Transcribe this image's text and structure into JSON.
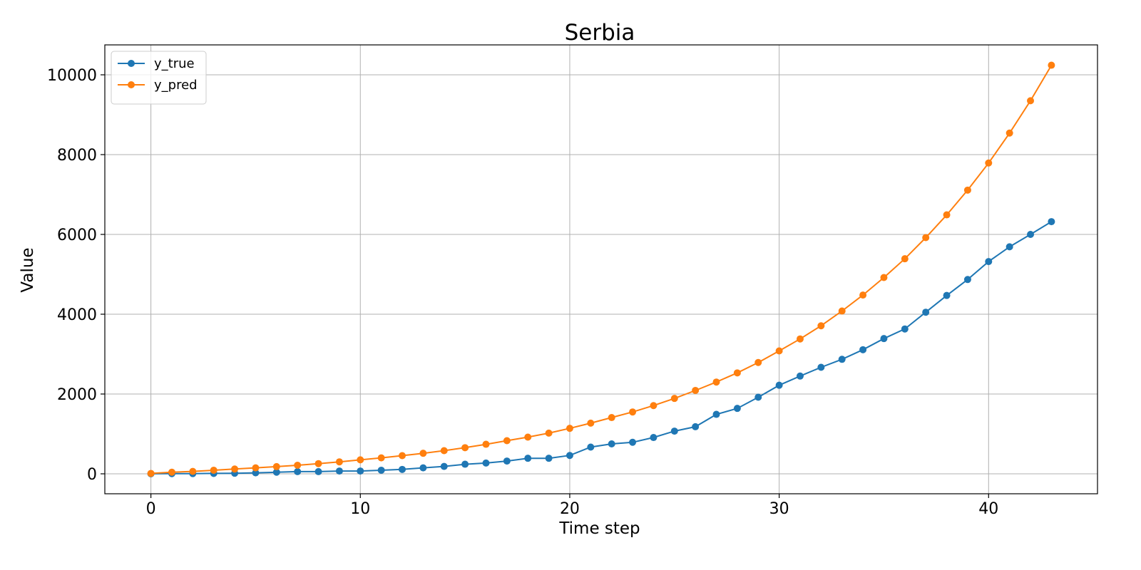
{
  "chart_data": {
    "type": "line",
    "title": "Serbia",
    "xlabel": "Time step",
    "ylabel": "Value",
    "xlim": [
      -2.2,
      45.2
    ],
    "ylim": [
      -500,
      10750
    ],
    "xticks": [
      0,
      10,
      20,
      30,
      40
    ],
    "yticks": [
      0,
      2000,
      4000,
      6000,
      8000,
      10000
    ],
    "grid": true,
    "legend_position": "upper-left",
    "x": [
      0,
      1,
      2,
      3,
      4,
      5,
      6,
      7,
      8,
      9,
      10,
      11,
      12,
      13,
      14,
      15,
      16,
      17,
      18,
      19,
      20,
      21,
      22,
      23,
      24,
      25,
      26,
      27,
      28,
      29,
      30,
      31,
      32,
      33,
      34,
      35,
      36,
      37,
      38,
      39,
      40,
      41,
      42,
      43
    ],
    "series": [
      {
        "name": "y_true",
        "color": "#1f77b4",
        "values": [
          1,
          4,
          6,
          10,
          15,
          25,
          40,
          55,
          55,
          70,
          70,
          90,
          110,
          150,
          185,
          240,
          270,
          320,
          390,
          390,
          460,
          670,
          750,
          790,
          910,
          1070,
          1180,
          1490,
          1640,
          1920,
          2220,
          2450,
          2670,
          2870,
          3110,
          3390,
          3630,
          4050,
          4470,
          4870,
          5320,
          5690,
          6000,
          6320
        ]
      },
      {
        "name": "y_pred",
        "color": "#ff7f0e",
        "values": [
          10,
          40,
          60,
          90,
          120,
          150,
          180,
          215,
          255,
          300,
          350,
          400,
          455,
          515,
          580,
          655,
          740,
          830,
          920,
          1020,
          1140,
          1270,
          1410,
          1550,
          1710,
          1890,
          2090,
          2300,
          2530,
          2790,
          3080,
          3380,
          3710,
          4080,
          4480,
          4920,
          5390,
          5920,
          6490,
          7110,
          7790,
          8540,
          9350,
          10240
        ]
      }
    ]
  }
}
